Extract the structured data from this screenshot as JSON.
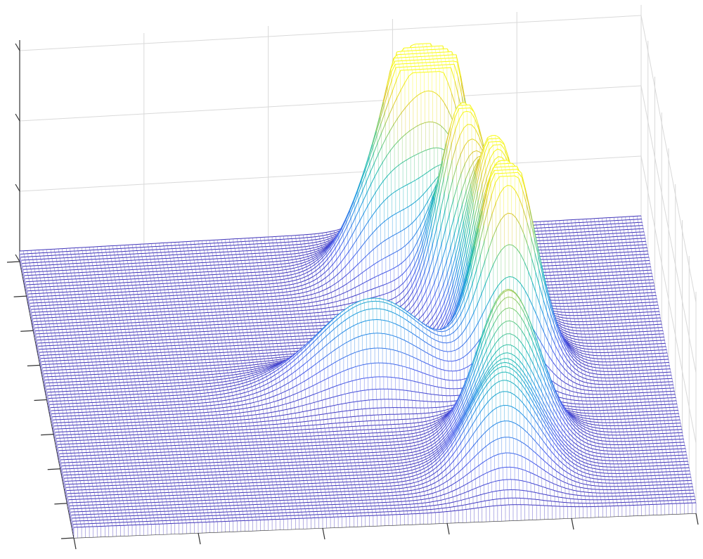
{
  "chart_data": {
    "type": "surface",
    "render_style": "waterfall",
    "colormap": "parula",
    "has_contour_projection": true,
    "grid": true,
    "title": "",
    "xlabel": "",
    "ylabel": "",
    "zlabel": "",
    "xlim": [
      0,
      1
    ],
    "ylim": [
      0,
      1
    ],
    "zlim": [
      0,
      1
    ],
    "peaks": [
      {
        "x": 0.63,
        "y": 0.08,
        "amplitude": 0.8,
        "width": 0.05
      },
      {
        "x": 0.67,
        "y": 0.12,
        "amplitude": 0.74,
        "width": 0.045
      },
      {
        "x": 0.58,
        "y": 0.16,
        "amplitude": 0.52,
        "width": 0.055
      },
      {
        "x": 0.69,
        "y": 0.28,
        "amplitude": 0.95,
        "width": 0.04
      },
      {
        "x": 0.73,
        "y": 0.4,
        "amplitude": 0.9,
        "width": 0.04
      },
      {
        "x": 0.74,
        "y": 0.52,
        "amplitude": 1.0,
        "width": 0.045
      },
      {
        "x": 0.52,
        "y": 0.55,
        "amplitude": 0.42,
        "width": 0.09
      },
      {
        "x": 0.72,
        "y": 0.76,
        "amplitude": 0.7,
        "width": 0.05
      },
      {
        "x": 0.7,
        "y": 0.88,
        "amplitude": 0.45,
        "width": 0.055
      }
    ],
    "baseline_level": 0.05
  }
}
